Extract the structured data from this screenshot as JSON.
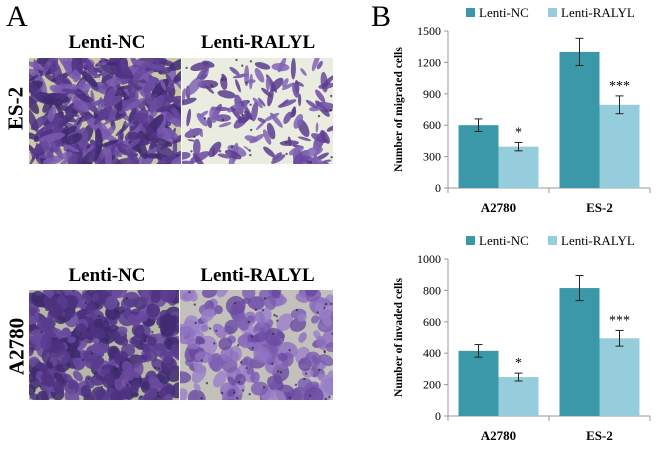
{
  "panel_a": {
    "letter": "A",
    "top": {
      "row_label": "ES-2",
      "left_label": "Lenti-NC",
      "right_label": "Lenti-RALYL"
    },
    "bottom": {
      "row_label": "A2780",
      "left_label": "Lenti-NC",
      "right_label": "Lenti-RALYL"
    }
  },
  "panel_b": {
    "letter": "B"
  },
  "colors": {
    "nc": "#3a98a8",
    "ralyl": "#95cddd",
    "stain": "#5b3c8f",
    "bg_dense": "#c9c9a8",
    "bg_sparse": "#e9ecdf"
  },
  "chart_data": [
    {
      "type": "bar",
      "title": "",
      "ylabel": "Number of migrated cells",
      "xlabel": "",
      "ylim": [
        0,
        1500
      ],
      "yticks": [
        0,
        300,
        600,
        900,
        1200,
        1500
      ],
      "categories": [
        "A2780",
        "ES-2"
      ],
      "series": [
        {
          "name": "Lenti-NC",
          "color": "#3a98a8",
          "values": [
            600,
            1300
          ],
          "errors": [
            60,
            130
          ]
        },
        {
          "name": "Lenti-RALYL",
          "color": "#95cddd",
          "values": [
            395,
            795
          ],
          "errors": [
            40,
            85
          ]
        }
      ],
      "annotations": [
        {
          "category": "A2780",
          "series": "Lenti-RALYL",
          "text": "*"
        },
        {
          "category": "ES-2",
          "series": "Lenti-RALYL",
          "text": "***"
        }
      ],
      "legend": "top"
    },
    {
      "type": "bar",
      "title": "",
      "ylabel": "Number of invaded cells",
      "xlabel": "",
      "ylim": [
        0,
        1000
      ],
      "yticks": [
        0,
        200,
        400,
        600,
        800,
        1000
      ],
      "categories": [
        "A2780",
        "ES-2"
      ],
      "series": [
        {
          "name": "Lenti-NC",
          "color": "#3a98a8",
          "values": [
            415,
            815
          ],
          "errors": [
            40,
            80
          ]
        },
        {
          "name": "Lenti-RALYL",
          "color": "#95cddd",
          "values": [
            248,
            495
          ],
          "errors": [
            25,
            50
          ]
        }
      ],
      "annotations": [
        {
          "category": "A2780",
          "series": "Lenti-RALYL",
          "text": "*"
        },
        {
          "category": "ES-2",
          "series": "Lenti-RALYL",
          "text": "***"
        }
      ],
      "legend": "top"
    }
  ]
}
